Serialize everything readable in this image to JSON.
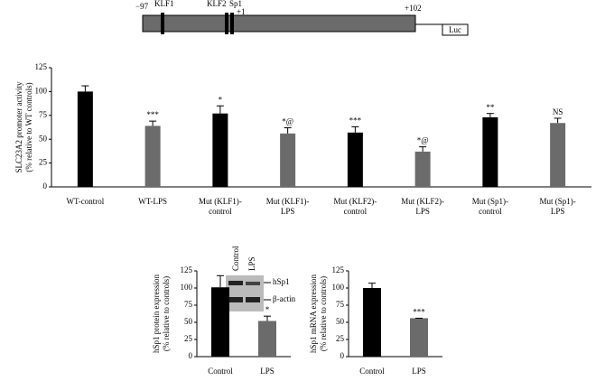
{
  "diagram": {
    "start": "−97",
    "sites": [
      "KLF1",
      "KLF2",
      "Sp1"
    ],
    "tss": "+1",
    "end": "+102",
    "reporter": "Luc"
  },
  "chart_data": [
    {
      "type": "bar",
      "ylabel": [
        "SLC23A2 promoter activity",
        "(% relative to WT controls)"
      ],
      "categories": [
        [
          "WT-control"
        ],
        [
          "WT-LPS"
        ],
        [
          "Mut (KLF1)-",
          "control"
        ],
        [
          "Mut (KLF1)-",
          "LPS"
        ],
        [
          "Mut (KLF2)-",
          "control"
        ],
        [
          "Mut (KLF2)-",
          "LPS"
        ],
        [
          "Mut (Sp1)-",
          "control"
        ],
        [
          "Mut (Sp1)-",
          "LPS"
        ]
      ],
      "values": [
        100,
        64,
        77,
        56,
        57,
        37,
        73,
        67
      ],
      "errors": [
        6,
        5,
        8,
        6,
        6,
        5,
        4,
        5
      ],
      "colors": [
        "#000000",
        "#6b6b6b",
        "#000000",
        "#6b6b6b",
        "#000000",
        "#6b6b6b",
        "#000000",
        "#6b6b6b"
      ],
      "value_annotations": [
        null,
        "***",
        "*",
        "*@",
        "***",
        "*@",
        "**",
        "NS"
      ],
      "ylim": [
        0,
        125
      ],
      "yticks": [
        0,
        25,
        50,
        75,
        100,
        125
      ]
    },
    {
      "type": "bar",
      "ylabel": [
        "hSp1 protein expression",
        "(% relative to controls)"
      ],
      "categories": [
        [
          "Control"
        ],
        [
          "LPS"
        ]
      ],
      "values": [
        101,
        52
      ],
      "errors": [
        17,
        7
      ],
      "colors": [
        "#000000",
        "#6b6b6b"
      ],
      "value_annotations": [
        null,
        "*"
      ],
      "blot": {
        "lanes": [
          "Control",
          "LPS"
        ],
        "bands": [
          "hSp1",
          "β-actin"
        ]
      },
      "ylim": [
        0,
        125
      ],
      "yticks": [
        0,
        25,
        50,
        75,
        100,
        125
      ]
    },
    {
      "type": "bar",
      "ylabel": [
        "hSp1 mRNA expression",
        "(% relative to controls)"
      ],
      "categories": [
        [
          "Control"
        ],
        [
          "LPS"
        ]
      ],
      "values": [
        100,
        56
      ],
      "errors": [
        7,
        0
      ],
      "colors": [
        "#000000",
        "#6b6b6b"
      ],
      "value_annotations": [
        null,
        "***"
      ],
      "ylim": [
        0,
        125
      ],
      "yticks": [
        0,
        25,
        50,
        75,
        100,
        125
      ]
    }
  ]
}
